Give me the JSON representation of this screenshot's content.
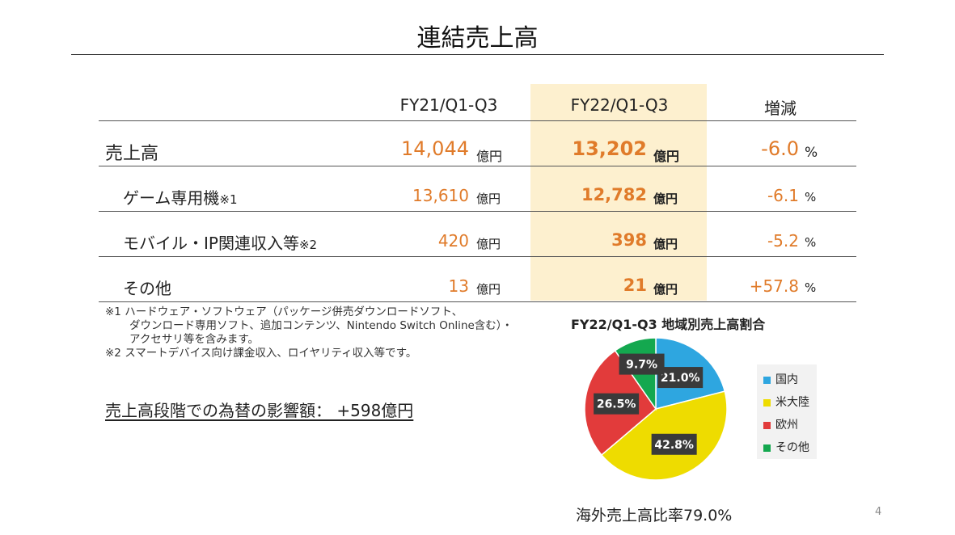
{
  "title": "連結売上高",
  "table": {
    "headers": [
      "FY21/Q1-Q3",
      "FY22/Q1-Q3",
      "増減"
    ],
    "rows": [
      {
        "label": "売上高",
        "note": "",
        "fy21": "14,044",
        "fy22": "13,202",
        "change": "-6.0",
        "unit": "億円",
        "pct": "%"
      },
      {
        "label": "ゲーム専用機",
        "note": "※1",
        "fy21": "13,610",
        "fy22": "12,782",
        "change": "-6.1",
        "unit": "億円",
        "pct": "%"
      },
      {
        "label": "モバイル・IP関連収入等",
        "note": "※2",
        "fy21": "420",
        "fy22": "398",
        "change": "-5.2",
        "unit": "億円",
        "pct": "%"
      },
      {
        "label": "その他",
        "note": "",
        "fy21": "13",
        "fy22": "21",
        "change": "+57.8",
        "unit": "億円",
        "pct": "%"
      }
    ]
  },
  "notes": [
    "※1 ハードウェア・ソフトウェア（パッケージ併売ダウンロードソフト、",
    "ダウンロード専用ソフト、追加コンテンツ、Nintendo Switch Online含む）・",
    "アクセサリ等を含みます。",
    "※2 スマートデバイス向け課金収入、ロイヤリティ収入等です。"
  ],
  "fx_impact": "売上高段階での為替の影響額： +598億円",
  "chart_data": {
    "type": "pie",
    "title": "FY22/Q1-Q3 地域別売上高割合",
    "slices": [
      {
        "label": "国内",
        "value": 21.0,
        "display": "21.0%",
        "color": "#2ea6e0"
      },
      {
        "label": "米大陸",
        "value": 42.8,
        "display": "42.8%",
        "color": "#eedc00"
      },
      {
        "label": "欧州",
        "value": 26.5,
        "display": "26.5%",
        "color": "#e23b3b"
      },
      {
        "label": "その他",
        "value": 9.7,
        "display": "9.7%",
        "color": "#14a84f"
      }
    ],
    "legend_position": "right"
  },
  "overseas_ratio": "海外売上高比率79.0%",
  "page_number": "4"
}
